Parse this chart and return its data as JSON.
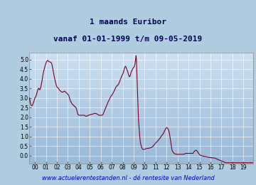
{
  "title_line1": "1 maands Euribor",
  "title_line2": "vanaf 01-01-1999 t/m 09-05-2019",
  "footer": "www.actuelerentestanden.nl - dé rentesite van Nederland",
  "xlim": [
    1999.0,
    2019.42
  ],
  "ylim": [
    -0.42,
    5.35
  ],
  "yticks": [
    0,
    0.5,
    1.0,
    1.5,
    2.0,
    2.5,
    3.0,
    3.5,
    4.0,
    4.5,
    5.0
  ],
  "xtick_labels": [
    "00",
    "01",
    "02",
    "03",
    "04",
    "05",
    "06",
    "07",
    "08",
    "09",
    "10",
    "11",
    "12",
    "13",
    "14",
    "15",
    "16",
    "17",
    "18",
    "19"
  ],
  "xtick_positions": [
    1999.5,
    2000.5,
    2001.5,
    2002.5,
    2003.5,
    2004.5,
    2005.5,
    2006.5,
    2007.5,
    2008.5,
    2009.5,
    2010.5,
    2011.5,
    2012.5,
    2013.5,
    2014.5,
    2015.5,
    2016.5,
    2017.5,
    2018.5
  ],
  "line_color": "#7B0025",
  "line_width": 0.8,
  "bg_color_top": "#9ab8d8",
  "bg_color_bottom": "#cce0f0",
  "outer_bg": "#b0cce0",
  "title_color": "#000055",
  "footer_color": "#0000bb",
  "grid_color": "#ffffff",
  "title_fontsize": 8.0,
  "footer_fontsize": 6.0,
  "euribor_data": [
    [
      1999.0,
      3.0
    ],
    [
      1999.05,
      2.85
    ],
    [
      1999.1,
      2.7
    ],
    [
      1999.15,
      2.62
    ],
    [
      1999.2,
      2.6
    ],
    [
      1999.25,
      2.6
    ],
    [
      1999.3,
      2.65
    ],
    [
      1999.35,
      2.72
    ],
    [
      1999.4,
      2.8
    ],
    [
      1999.45,
      2.9
    ],
    [
      1999.5,
      3.0
    ],
    [
      1999.55,
      3.05
    ],
    [
      1999.6,
      3.1
    ],
    [
      1999.65,
      3.2
    ],
    [
      1999.7,
      3.3
    ],
    [
      1999.75,
      3.4
    ],
    [
      1999.8,
      3.48
    ],
    [
      1999.85,
      3.5
    ],
    [
      1999.9,
      3.45
    ],
    [
      1999.95,
      3.42
    ],
    [
      2000.0,
      3.5
    ],
    [
      2000.05,
      3.6
    ],
    [
      2000.1,
      3.75
    ],
    [
      2000.15,
      3.9
    ],
    [
      2000.2,
      4.1
    ],
    [
      2000.25,
      4.25
    ],
    [
      2000.3,
      4.4
    ],
    [
      2000.35,
      4.5
    ],
    [
      2000.4,
      4.62
    ],
    [
      2000.45,
      4.72
    ],
    [
      2000.5,
      4.8
    ],
    [
      2000.55,
      4.87
    ],
    [
      2000.6,
      4.92
    ],
    [
      2000.65,
      4.95
    ],
    [
      2000.7,
      4.95
    ],
    [
      2000.75,
      4.9
    ],
    [
      2000.8,
      4.88
    ],
    [
      2000.85,
      4.87
    ],
    [
      2000.9,
      4.86
    ],
    [
      2000.95,
      4.85
    ],
    [
      2001.0,
      4.82
    ],
    [
      2001.05,
      4.75
    ],
    [
      2001.1,
      4.6
    ],
    [
      2001.15,
      4.45
    ],
    [
      2001.2,
      4.3
    ],
    [
      2001.25,
      4.15
    ],
    [
      2001.3,
      4.0
    ],
    [
      2001.35,
      3.88
    ],
    [
      2001.4,
      3.75
    ],
    [
      2001.45,
      3.65
    ],
    [
      2001.5,
      3.58
    ],
    [
      2001.55,
      3.55
    ],
    [
      2001.6,
      3.52
    ],
    [
      2001.65,
      3.5
    ],
    [
      2001.7,
      3.45
    ],
    [
      2001.75,
      3.4
    ],
    [
      2001.8,
      3.37
    ],
    [
      2001.85,
      3.35
    ],
    [
      2001.9,
      3.33
    ],
    [
      2001.95,
      3.31
    ],
    [
      2002.0,
      3.3
    ],
    [
      2002.05,
      3.3
    ],
    [
      2002.1,
      3.32
    ],
    [
      2002.15,
      3.35
    ],
    [
      2002.2,
      3.35
    ],
    [
      2002.25,
      3.33
    ],
    [
      2002.3,
      3.3
    ],
    [
      2002.35,
      3.28
    ],
    [
      2002.4,
      3.25
    ],
    [
      2002.45,
      3.22
    ],
    [
      2002.5,
      3.2
    ],
    [
      2002.55,
      3.15
    ],
    [
      2002.6,
      3.1
    ],
    [
      2002.65,
      3.0
    ],
    [
      2002.7,
      2.9
    ],
    [
      2002.75,
      2.82
    ],
    [
      2002.8,
      2.78
    ],
    [
      2002.85,
      2.73
    ],
    [
      2002.9,
      2.68
    ],
    [
      2002.95,
      2.65
    ],
    [
      2003.0,
      2.63
    ],
    [
      2003.05,
      2.6
    ],
    [
      2003.1,
      2.57
    ],
    [
      2003.15,
      2.55
    ],
    [
      2003.2,
      2.52
    ],
    [
      2003.25,
      2.48
    ],
    [
      2003.3,
      2.4
    ],
    [
      2003.35,
      2.28
    ],
    [
      2003.4,
      2.18
    ],
    [
      2003.45,
      2.12
    ],
    [
      2003.5,
      2.1
    ],
    [
      2003.55,
      2.1
    ],
    [
      2003.6,
      2.1
    ],
    [
      2003.65,
      2.1
    ],
    [
      2003.7,
      2.1
    ],
    [
      2003.75,
      2.1
    ],
    [
      2003.8,
      2.1
    ],
    [
      2003.85,
      2.1
    ],
    [
      2003.9,
      2.1
    ],
    [
      2003.95,
      2.1
    ],
    [
      2004.0,
      2.1
    ],
    [
      2004.05,
      2.08
    ],
    [
      2004.1,
      2.06
    ],
    [
      2004.15,
      2.05
    ],
    [
      2004.2,
      2.05
    ],
    [
      2004.25,
      2.06
    ],
    [
      2004.3,
      2.08
    ],
    [
      2004.35,
      2.1
    ],
    [
      2004.4,
      2.1
    ],
    [
      2004.45,
      2.11
    ],
    [
      2004.5,
      2.12
    ],
    [
      2004.55,
      2.13
    ],
    [
      2004.6,
      2.14
    ],
    [
      2004.65,
      2.15
    ],
    [
      2004.7,
      2.15
    ],
    [
      2004.75,
      2.16
    ],
    [
      2004.8,
      2.17
    ],
    [
      2004.85,
      2.18
    ],
    [
      2004.9,
      2.19
    ],
    [
      2004.95,
      2.2
    ],
    [
      2005.0,
      2.2
    ],
    [
      2005.05,
      2.19
    ],
    [
      2005.1,
      2.18
    ],
    [
      2005.15,
      2.17
    ],
    [
      2005.2,
      2.15
    ],
    [
      2005.25,
      2.13
    ],
    [
      2005.3,
      2.11
    ],
    [
      2005.35,
      2.1
    ],
    [
      2005.4,
      2.1
    ],
    [
      2005.45,
      2.1
    ],
    [
      2005.5,
      2.1
    ],
    [
      2005.55,
      2.1
    ],
    [
      2005.6,
      2.1
    ],
    [
      2005.65,
      2.11
    ],
    [
      2005.7,
      2.14
    ],
    [
      2005.75,
      2.2
    ],
    [
      2005.8,
      2.28
    ],
    [
      2005.85,
      2.35
    ],
    [
      2005.9,
      2.42
    ],
    [
      2005.95,
      2.5
    ],
    [
      2006.0,
      2.57
    ],
    [
      2006.05,
      2.64
    ],
    [
      2006.1,
      2.7
    ],
    [
      2006.15,
      2.77
    ],
    [
      2006.2,
      2.83
    ],
    [
      2006.25,
      2.88
    ],
    [
      2006.3,
      2.94
    ],
    [
      2006.35,
      3.0
    ],
    [
      2006.4,
      3.06
    ],
    [
      2006.45,
      3.1
    ],
    [
      2006.5,
      3.13
    ],
    [
      2006.55,
      3.18
    ],
    [
      2006.6,
      3.23
    ],
    [
      2006.65,
      3.28
    ],
    [
      2006.7,
      3.33
    ],
    [
      2006.75,
      3.4
    ],
    [
      2006.8,
      3.46
    ],
    [
      2006.85,
      3.52
    ],
    [
      2006.9,
      3.57
    ],
    [
      2006.95,
      3.62
    ],
    [
      2007.0,
      3.63
    ],
    [
      2007.05,
      3.66
    ],
    [
      2007.1,
      3.7
    ],
    [
      2007.15,
      3.75
    ],
    [
      2007.2,
      3.82
    ],
    [
      2007.25,
      3.9
    ],
    [
      2007.3,
      3.97
    ],
    [
      2007.35,
      4.05
    ],
    [
      2007.4,
      4.12
    ],
    [
      2007.45,
      4.18
    ],
    [
      2007.5,
      4.23
    ],
    [
      2007.55,
      4.3
    ],
    [
      2007.6,
      4.4
    ],
    [
      2007.65,
      4.52
    ],
    [
      2007.7,
      4.6
    ],
    [
      2007.75,
      4.65
    ],
    [
      2007.8,
      4.6
    ],
    [
      2007.85,
      4.52
    ],
    [
      2007.9,
      4.45
    ],
    [
      2007.95,
      4.38
    ],
    [
      2008.0,
      4.28
    ],
    [
      2008.05,
      4.18
    ],
    [
      2008.1,
      4.1
    ],
    [
      2008.15,
      4.12
    ],
    [
      2008.2,
      4.18
    ],
    [
      2008.25,
      4.3
    ],
    [
      2008.3,
      4.38
    ],
    [
      2008.35,
      4.44
    ],
    [
      2008.4,
      4.5
    ],
    [
      2008.45,
      4.55
    ],
    [
      2008.5,
      4.58
    ],
    [
      2008.55,
      4.62
    ],
    [
      2008.6,
      4.72
    ],
    [
      2008.65,
      4.9
    ],
    [
      2008.7,
      5.1
    ],
    [
      2008.72,
      5.2
    ],
    [
      2008.75,
      5.0
    ],
    [
      2008.78,
      4.5
    ],
    [
      2008.82,
      3.8
    ],
    [
      2008.87,
      3.0
    ],
    [
      2008.92,
      2.2
    ],
    [
      2008.96,
      1.7
    ],
    [
      2009.0,
      1.4
    ],
    [
      2009.04,
      1.1
    ],
    [
      2009.08,
      0.85
    ],
    [
      2009.12,
      0.68
    ],
    [
      2009.17,
      0.55
    ],
    [
      2009.22,
      0.45
    ],
    [
      2009.27,
      0.38
    ],
    [
      2009.33,
      0.33
    ],
    [
      2009.38,
      0.32
    ],
    [
      2009.42,
      0.32
    ],
    [
      2009.5,
      0.33
    ],
    [
      2009.58,
      0.35
    ],
    [
      2009.67,
      0.37
    ],
    [
      2009.75,
      0.38
    ],
    [
      2009.83,
      0.38
    ],
    [
      2009.92,
      0.39
    ],
    [
      2010.0,
      0.4
    ],
    [
      2010.08,
      0.42
    ],
    [
      2010.17,
      0.44
    ],
    [
      2010.25,
      0.48
    ],
    [
      2010.33,
      0.54
    ],
    [
      2010.42,
      0.6
    ],
    [
      2010.5,
      0.65
    ],
    [
      2010.58,
      0.7
    ],
    [
      2010.67,
      0.75
    ],
    [
      2010.75,
      0.8
    ],
    [
      2010.83,
      0.86
    ],
    [
      2010.92,
      0.92
    ],
    [
      2011.0,
      1.0
    ],
    [
      2011.08,
      1.06
    ],
    [
      2011.17,
      1.12
    ],
    [
      2011.25,
      1.2
    ],
    [
      2011.33,
      1.3
    ],
    [
      2011.42,
      1.4
    ],
    [
      2011.5,
      1.46
    ],
    [
      2011.55,
      1.45
    ],
    [
      2011.6,
      1.42
    ],
    [
      2011.67,
      1.35
    ],
    [
      2011.75,
      1.2
    ],
    [
      2011.83,
      0.9
    ],
    [
      2011.9,
      0.65
    ],
    [
      2011.95,
      0.45
    ],
    [
      2012.0,
      0.28
    ],
    [
      2012.05,
      0.22
    ],
    [
      2012.1,
      0.18
    ],
    [
      2012.15,
      0.14
    ],
    [
      2012.2,
      0.12
    ],
    [
      2012.25,
      0.1
    ],
    [
      2012.33,
      0.08
    ],
    [
      2012.42,
      0.07
    ],
    [
      2012.5,
      0.07
    ],
    [
      2012.58,
      0.07
    ],
    [
      2012.67,
      0.07
    ],
    [
      2012.75,
      0.07
    ],
    [
      2012.83,
      0.07
    ],
    [
      2012.92,
      0.07
    ],
    [
      2013.0,
      0.07
    ],
    [
      2013.08,
      0.07
    ],
    [
      2013.17,
      0.1
    ],
    [
      2013.25,
      0.12
    ],
    [
      2013.33,
      0.12
    ],
    [
      2013.42,
      0.12
    ],
    [
      2013.5,
      0.12
    ],
    [
      2013.58,
      0.12
    ],
    [
      2013.67,
      0.12
    ],
    [
      2013.75,
      0.12
    ],
    [
      2013.83,
      0.12
    ],
    [
      2013.92,
      0.12
    ],
    [
      2014.0,
      0.2
    ],
    [
      2014.08,
      0.25
    ],
    [
      2014.17,
      0.28
    ],
    [
      2014.25,
      0.27
    ],
    [
      2014.33,
      0.2
    ],
    [
      2014.42,
      0.12
    ],
    [
      2014.5,
      0.06
    ],
    [
      2014.58,
      0.02
    ],
    [
      2014.67,
      0.0
    ],
    [
      2014.75,
      -0.01
    ],
    [
      2014.83,
      -0.02
    ],
    [
      2014.92,
      -0.04
    ],
    [
      2015.0,
      -0.04
    ],
    [
      2015.1,
      -0.05
    ],
    [
      2015.2,
      -0.07
    ],
    [
      2015.3,
      -0.08
    ],
    [
      2015.4,
      -0.09
    ],
    [
      2015.5,
      -0.1
    ],
    [
      2015.6,
      -0.11
    ],
    [
      2015.7,
      -0.12
    ],
    [
      2015.8,
      -0.12
    ],
    [
      2015.9,
      -0.13
    ],
    [
      2016.0,
      -0.15
    ],
    [
      2016.1,
      -0.18
    ],
    [
      2016.2,
      -0.2
    ],
    [
      2016.3,
      -0.23
    ],
    [
      2016.4,
      -0.25
    ],
    [
      2016.5,
      -0.27
    ],
    [
      2016.6,
      -0.3
    ],
    [
      2016.7,
      -0.32
    ],
    [
      2016.8,
      -0.35
    ],
    [
      2016.9,
      -0.37
    ],
    [
      2017.0,
      -0.37
    ],
    [
      2017.2,
      -0.37
    ],
    [
      2017.4,
      -0.37
    ],
    [
      2017.6,
      -0.37
    ],
    [
      2017.8,
      -0.37
    ],
    [
      2018.0,
      -0.37
    ],
    [
      2018.2,
      -0.37
    ],
    [
      2018.4,
      -0.37
    ],
    [
      2018.6,
      -0.37
    ],
    [
      2018.8,
      -0.37
    ],
    [
      2019.0,
      -0.37
    ],
    [
      2019.2,
      -0.37
    ],
    [
      2019.35,
      -0.37
    ]
  ]
}
